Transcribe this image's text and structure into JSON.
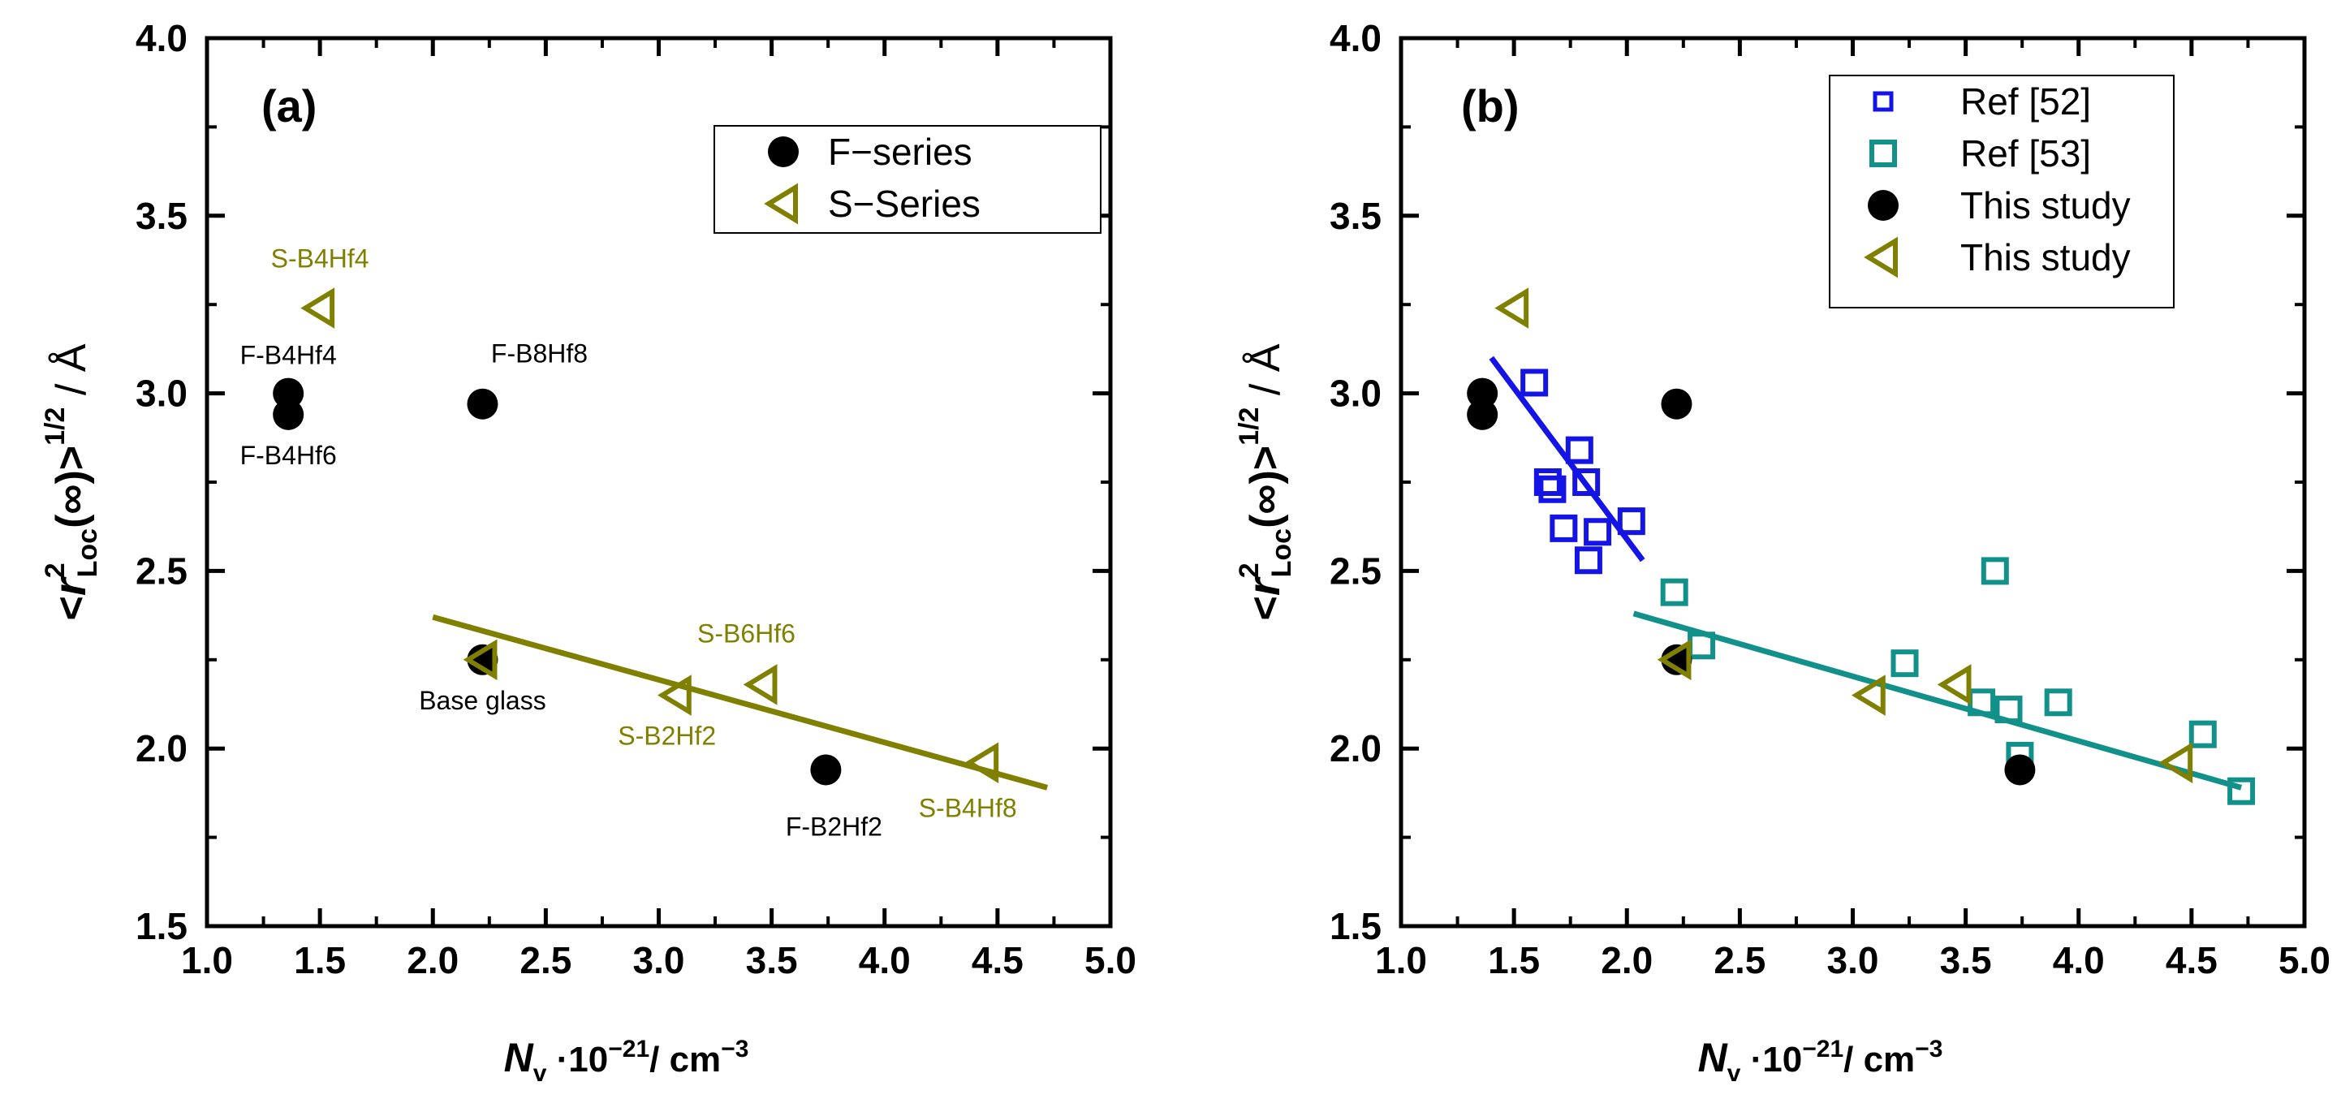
{
  "colors": {
    "olive": "#808000",
    "blue": "#1414e6",
    "teal": "#12908a",
    "black": "#000000"
  },
  "chart_data": [
    {
      "type": "scatter",
      "panel_label": "(a)",
      "x_range": [
        1.0,
        5.0
      ],
      "y_range": [
        1.5,
        4.0
      ],
      "x_ticks": [
        "1.0",
        "1.5",
        "2.0",
        "2.5",
        "3.0",
        "3.5",
        "4.0",
        "4.5",
        "5.0"
      ],
      "y_ticks": [
        "1.5",
        "2.0",
        "2.5",
        "3.0",
        "3.5",
        "4.0"
      ],
      "xlabel": {
        "var": "N",
        "sub": "v",
        "rest": "·10",
        "sup": "−21",
        "unit": "/ cm",
        "unit_sup": "−3"
      },
      "ylabel": {
        "pre": "<",
        "var": "r",
        "sup": "2",
        "sub": "Loc",
        "mid": "(∞)>",
        "sup2": "1/2",
        "unit": " / Å"
      },
      "legend": [
        {
          "label": "F−series",
          "marker": "circle",
          "color": "#000000"
        },
        {
          "label": "S−Series",
          "marker": "triangle-left",
          "color": "#808000"
        }
      ],
      "series": [
        {
          "name": "F−series",
          "marker": "circle",
          "color": "#000000",
          "points": [
            {
              "x": 1.36,
              "y": 3.0,
              "label": "F-B4Hf4"
            },
            {
              "x": 1.36,
              "y": 2.94,
              "label": "F-B4Hf6"
            },
            {
              "x": 2.22,
              "y": 2.97,
              "label": "F-B8Hf8"
            },
            {
              "x": 2.22,
              "y": 2.25,
              "label": "Base glass"
            },
            {
              "x": 3.74,
              "y": 1.94,
              "label": "F-B2Hf2"
            }
          ]
        },
        {
          "name": "S−Series",
          "marker": "triangle-left",
          "color": "#808000",
          "points": [
            {
              "x": 1.5,
              "y": 3.24,
              "label": "S-B4Hf4"
            },
            {
              "x": 2.22,
              "y": 2.25,
              "label": ""
            },
            {
              "x": 3.08,
              "y": 2.15,
              "label": "S-B2Hf2"
            },
            {
              "x": 3.46,
              "y": 2.18,
              "label": "S-B6Hf6"
            },
            {
              "x": 4.44,
              "y": 1.96,
              "label": "S-B4Hf8"
            }
          ]
        }
      ],
      "fit_lines": [
        {
          "color": "#808000",
          "x": [
            2.0,
            4.72
          ],
          "y": [
            2.37,
            1.89
          ]
        }
      ]
    },
    {
      "type": "scatter",
      "panel_label": "(b)",
      "x_range": [
        1.0,
        5.0
      ],
      "y_range": [
        1.5,
        4.0
      ],
      "x_ticks": [
        "1.0",
        "1.5",
        "2.0",
        "2.5",
        "3.0",
        "3.5",
        "4.0",
        "4.5",
        "5.0"
      ],
      "y_ticks": [
        "1.5",
        "2.0",
        "2.5",
        "3.0",
        "3.5",
        "4.0"
      ],
      "xlabel": {
        "var": "N",
        "sub": "v",
        "rest": "·10",
        "sup": "−21",
        "unit": "/ cm",
        "unit_sup": "−3"
      },
      "ylabel": {
        "pre": "<",
        "var": "r",
        "sup": "2",
        "sub": "Loc",
        "mid": "(∞)>",
        "sup2": "1/2",
        "unit": " / Å"
      },
      "legend": [
        {
          "label": "Ref [52]",
          "marker": "square-small",
          "color": "#1414e6"
        },
        {
          "label": "Ref [53]",
          "marker": "square",
          "color": "#12908a"
        },
        {
          "label": "This study",
          "marker": "circle",
          "color": "#000000"
        },
        {
          "label": "This study",
          "marker": "triangle-left",
          "color": "#808000"
        }
      ],
      "series": [
        {
          "name": "Ref [52]",
          "marker": "square",
          "color": "#1414e6",
          "points": [
            {
              "x": 1.59,
              "y": 3.03
            },
            {
              "x": 1.65,
              "y": 2.75
            },
            {
              "x": 1.67,
              "y": 2.73
            },
            {
              "x": 1.72,
              "y": 2.62
            },
            {
              "x": 1.79,
              "y": 2.84
            },
            {
              "x": 1.82,
              "y": 2.75
            },
            {
              "x": 1.83,
              "y": 2.53
            },
            {
              "x": 1.87,
              "y": 2.61
            },
            {
              "x": 2.02,
              "y": 2.64
            }
          ]
        },
        {
          "name": "Ref [53]",
          "marker": "square",
          "color": "#12908a",
          "points": [
            {
              "x": 2.21,
              "y": 2.44
            },
            {
              "x": 2.33,
              "y": 2.29
            },
            {
              "x": 3.23,
              "y": 2.24
            },
            {
              "x": 3.57,
              "y": 2.13
            },
            {
              "x": 3.63,
              "y": 2.5
            },
            {
              "x": 3.69,
              "y": 2.11
            },
            {
              "x": 3.74,
              "y": 1.98
            },
            {
              "x": 3.91,
              "y": 2.13
            },
            {
              "x": 4.55,
              "y": 2.04
            },
            {
              "x": 4.72,
              "y": 1.88
            }
          ]
        },
        {
          "name": "This study",
          "marker": "circle",
          "color": "#000000",
          "points": [
            {
              "x": 1.36,
              "y": 3.0
            },
            {
              "x": 1.36,
              "y": 2.94
            },
            {
              "x": 2.22,
              "y": 2.97
            },
            {
              "x": 2.22,
              "y": 2.25
            },
            {
              "x": 3.74,
              "y": 1.94
            }
          ]
        },
        {
          "name": "This study",
          "marker": "triangle-left",
          "color": "#808000",
          "points": [
            {
              "x": 1.5,
              "y": 3.24
            },
            {
              "x": 2.22,
              "y": 2.25
            },
            {
              "x": 3.08,
              "y": 2.15
            },
            {
              "x": 3.46,
              "y": 2.18
            },
            {
              "x": 4.44,
              "y": 1.96
            }
          ]
        }
      ],
      "fit_lines": [
        {
          "color": "#1414e6",
          "x": [
            1.4,
            2.07
          ],
          "y": [
            3.1,
            2.53
          ]
        },
        {
          "color": "#12908a",
          "x": [
            2.03,
            4.72
          ],
          "y": [
            2.38,
            1.89
          ]
        }
      ]
    }
  ]
}
